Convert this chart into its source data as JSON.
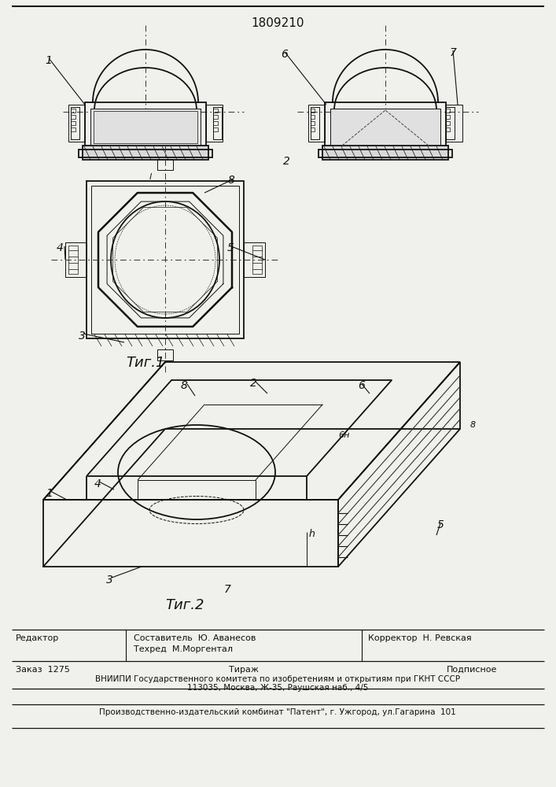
{
  "patent_number": "1809210",
  "fig1_label": "Τиг.1",
  "fig2_label": "Τиг.2",
  "bg_color": "#f0f0ec",
  "line_color": "#111111",
  "footer": {
    "editor_label": "Редактор",
    "composer": "Составитель  Ю. Аванесов",
    "techred": "Техред  М.Моргентал",
    "corrector": "Корректор  Н. Ревская",
    "zakaz": "Заказ  1275",
    "tirazh": "Тираж",
    "podpisnoe": "Подписное",
    "vniip1": "ВНИИПИ Государственного комитета по изобретениям и открытиям при ГКНТ СССР",
    "vniip2": "113035, Москва, Ж-35, Раушская наб., 4/5",
    "producer": "Производственно-издательский комбинат \"Патент\", г. Ужгород, ул.Гагарина  101"
  }
}
